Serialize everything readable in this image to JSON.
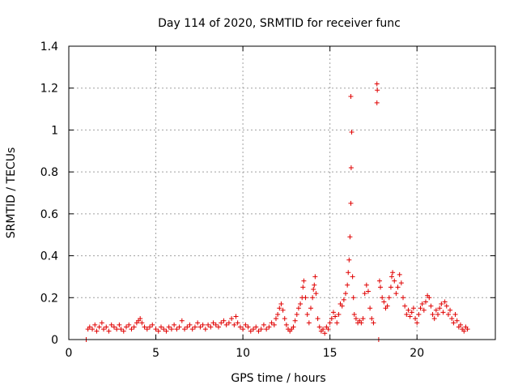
{
  "chart_data": {
    "type": "scatter",
    "title": "Day 114 of 2020, SRMTID for receiver func",
    "xlabel": "GPS time / hours",
    "ylabel": "SRMTID / TECUs",
    "xlim": [
      0,
      24.5
    ],
    "ylim": [
      0,
      1.4
    ],
    "xticks": [
      0,
      5,
      10,
      15,
      20
    ],
    "xtick_labels": [
      "0",
      "5",
      "10",
      "15",
      "20"
    ],
    "yticks": [
      0,
      0.2,
      0.4,
      0.6,
      0.8,
      1.0,
      1.2,
      1.4
    ],
    "ytick_labels": [
      "0",
      "0.2",
      "0.4",
      "0.6",
      "0.8",
      "1",
      "1.2",
      "1.4"
    ],
    "grid": true,
    "marker": "+",
    "color": "#e00000",
    "series": [
      {
        "name": "SRMTID",
        "points": [
          [
            1.0,
            0.0
          ],
          [
            1.1,
            0.05
          ],
          [
            1.2,
            0.06
          ],
          [
            1.35,
            0.05
          ],
          [
            1.5,
            0.07
          ],
          [
            1.6,
            0.04
          ],
          [
            1.75,
            0.06
          ],
          [
            1.9,
            0.08
          ],
          [
            2.0,
            0.05
          ],
          [
            2.15,
            0.06
          ],
          [
            2.3,
            0.04
          ],
          [
            2.45,
            0.07
          ],
          [
            2.6,
            0.06
          ],
          [
            2.75,
            0.05
          ],
          [
            2.9,
            0.07
          ],
          [
            3.0,
            0.05
          ],
          [
            3.15,
            0.04
          ],
          [
            3.3,
            0.06
          ],
          [
            3.45,
            0.07
          ],
          [
            3.6,
            0.05
          ],
          [
            3.75,
            0.06
          ],
          [
            3.9,
            0.08
          ],
          [
            4.0,
            0.09
          ],
          [
            4.1,
            0.1
          ],
          [
            4.2,
            0.08
          ],
          [
            4.35,
            0.06
          ],
          [
            4.5,
            0.05
          ],
          [
            4.65,
            0.06
          ],
          [
            4.8,
            0.07
          ],
          [
            5.0,
            0.05
          ],
          [
            5.15,
            0.04
          ],
          [
            5.3,
            0.06
          ],
          [
            5.45,
            0.05
          ],
          [
            5.6,
            0.04
          ],
          [
            5.75,
            0.06
          ],
          [
            5.9,
            0.05
          ],
          [
            6.05,
            0.07
          ],
          [
            6.2,
            0.05
          ],
          [
            6.35,
            0.06
          ],
          [
            6.5,
            0.09
          ],
          [
            6.65,
            0.05
          ],
          [
            6.8,
            0.06
          ],
          [
            6.95,
            0.07
          ],
          [
            7.1,
            0.05
          ],
          [
            7.25,
            0.06
          ],
          [
            7.4,
            0.08
          ],
          [
            7.55,
            0.06
          ],
          [
            7.7,
            0.07
          ],
          [
            7.85,
            0.05
          ],
          [
            8.0,
            0.07
          ],
          [
            8.15,
            0.06
          ],
          [
            8.3,
            0.08
          ],
          [
            8.45,
            0.07
          ],
          [
            8.6,
            0.06
          ],
          [
            8.75,
            0.08
          ],
          [
            8.9,
            0.09
          ],
          [
            9.05,
            0.07
          ],
          [
            9.2,
            0.08
          ],
          [
            9.35,
            0.1
          ],
          [
            9.5,
            0.07
          ],
          [
            9.6,
            0.11
          ],
          [
            9.7,
            0.08
          ],
          [
            9.85,
            0.06
          ],
          [
            10.0,
            0.05
          ],
          [
            10.15,
            0.07
          ],
          [
            10.3,
            0.06
          ],
          [
            10.45,
            0.04
          ],
          [
            10.6,
            0.05
          ],
          [
            10.75,
            0.06
          ],
          [
            10.9,
            0.04
          ],
          [
            11.05,
            0.05
          ],
          [
            11.2,
            0.07
          ],
          [
            11.35,
            0.05
          ],
          [
            11.5,
            0.06
          ],
          [
            11.65,
            0.08
          ],
          [
            11.8,
            0.07
          ],
          [
            11.9,
            0.1
          ],
          [
            12.0,
            0.12
          ],
          [
            12.1,
            0.15
          ],
          [
            12.2,
            0.17
          ],
          [
            12.3,
            0.14
          ],
          [
            12.4,
            0.1
          ],
          [
            12.5,
            0.07
          ],
          [
            12.6,
            0.05
          ],
          [
            12.7,
            0.04
          ],
          [
            12.8,
            0.05
          ],
          [
            12.9,
            0.06
          ],
          [
            13.0,
            0.09
          ],
          [
            13.1,
            0.12
          ],
          [
            13.2,
            0.15
          ],
          [
            13.3,
            0.17
          ],
          [
            13.4,
            0.2
          ],
          [
            13.45,
            0.25
          ],
          [
            13.5,
            0.28
          ],
          [
            13.6,
            0.2
          ],
          [
            13.7,
            0.12
          ],
          [
            13.8,
            0.08
          ],
          [
            13.9,
            0.15
          ],
          [
            14.0,
            0.2
          ],
          [
            14.05,
            0.24
          ],
          [
            14.1,
            0.26
          ],
          [
            14.15,
            0.3
          ],
          [
            14.2,
            0.22
          ],
          [
            14.3,
            0.1
          ],
          [
            14.4,
            0.06
          ],
          [
            14.5,
            0.04
          ],
          [
            14.6,
            0.05
          ],
          [
            14.7,
            0.03
          ],
          [
            14.8,
            0.06
          ],
          [
            14.9,
            0.05
          ],
          [
            15.0,
            0.08
          ],
          [
            15.1,
            0.1
          ],
          [
            15.2,
            0.13
          ],
          [
            15.3,
            0.11
          ],
          [
            15.4,
            0.08
          ],
          [
            15.5,
            0.12
          ],
          [
            15.6,
            0.17
          ],
          [
            15.7,
            0.16
          ],
          [
            15.8,
            0.19
          ],
          [
            15.9,
            0.22
          ],
          [
            16.0,
            0.26
          ],
          [
            16.05,
            0.32
          ],
          [
            16.1,
            0.38
          ],
          [
            16.15,
            0.49
          ],
          [
            16.2,
            0.65
          ],
          [
            16.22,
            0.82
          ],
          [
            16.25,
            0.99
          ],
          [
            16.2,
            1.16
          ],
          [
            16.3,
            0.3
          ],
          [
            16.35,
            0.2
          ],
          [
            16.4,
            0.12
          ],
          [
            16.5,
            0.1
          ],
          [
            16.6,
            0.08
          ],
          [
            16.7,
            0.09
          ],
          [
            16.8,
            0.08
          ],
          [
            16.9,
            0.1
          ],
          [
            17.0,
            0.22
          ],
          [
            17.1,
            0.26
          ],
          [
            17.2,
            0.23
          ],
          [
            17.3,
            0.15
          ],
          [
            17.4,
            0.1
          ],
          [
            17.5,
            0.08
          ],
          [
            17.7,
            1.22
          ],
          [
            17.72,
            1.19
          ],
          [
            17.7,
            1.13
          ],
          [
            17.8,
            0.0
          ],
          [
            17.85,
            0.28
          ],
          [
            17.9,
            0.25
          ],
          [
            18.0,
            0.2
          ],
          [
            18.1,
            0.18
          ],
          [
            18.2,
            0.15
          ],
          [
            18.3,
            0.16
          ],
          [
            18.4,
            0.2
          ],
          [
            18.5,
            0.25
          ],
          [
            18.55,
            0.3
          ],
          [
            18.6,
            0.32
          ],
          [
            18.7,
            0.28
          ],
          [
            18.8,
            0.22
          ],
          [
            18.9,
            0.25
          ],
          [
            19.0,
            0.31
          ],
          [
            19.1,
            0.27
          ],
          [
            19.2,
            0.2
          ],
          [
            19.3,
            0.16
          ],
          [
            19.4,
            0.12
          ],
          [
            19.5,
            0.14
          ],
          [
            19.6,
            0.11
          ],
          [
            19.7,
            0.13
          ],
          [
            19.8,
            0.15
          ],
          [
            19.9,
            0.1
          ],
          [
            20.0,
            0.08
          ],
          [
            20.1,
            0.12
          ],
          [
            20.2,
            0.15
          ],
          [
            20.3,
            0.17
          ],
          [
            20.4,
            0.14
          ],
          [
            20.5,
            0.18
          ],
          [
            20.6,
            0.21
          ],
          [
            20.7,
            0.2
          ],
          [
            20.8,
            0.16
          ],
          [
            20.9,
            0.12
          ],
          [
            21.0,
            0.1
          ],
          [
            21.1,
            0.14
          ],
          [
            21.2,
            0.12
          ],
          [
            21.3,
            0.15
          ],
          [
            21.4,
            0.17
          ],
          [
            21.5,
            0.13
          ],
          [
            21.6,
            0.18
          ],
          [
            21.7,
            0.16
          ],
          [
            21.8,
            0.12
          ],
          [
            21.9,
            0.14
          ],
          [
            22.0,
            0.1
          ],
          [
            22.1,
            0.08
          ],
          [
            22.2,
            0.12
          ],
          [
            22.3,
            0.09
          ],
          [
            22.4,
            0.06
          ],
          [
            22.5,
            0.07
          ],
          [
            22.6,
            0.05
          ],
          [
            22.7,
            0.04
          ],
          [
            22.8,
            0.06
          ],
          [
            22.9,
            0.05
          ]
        ]
      }
    ]
  }
}
